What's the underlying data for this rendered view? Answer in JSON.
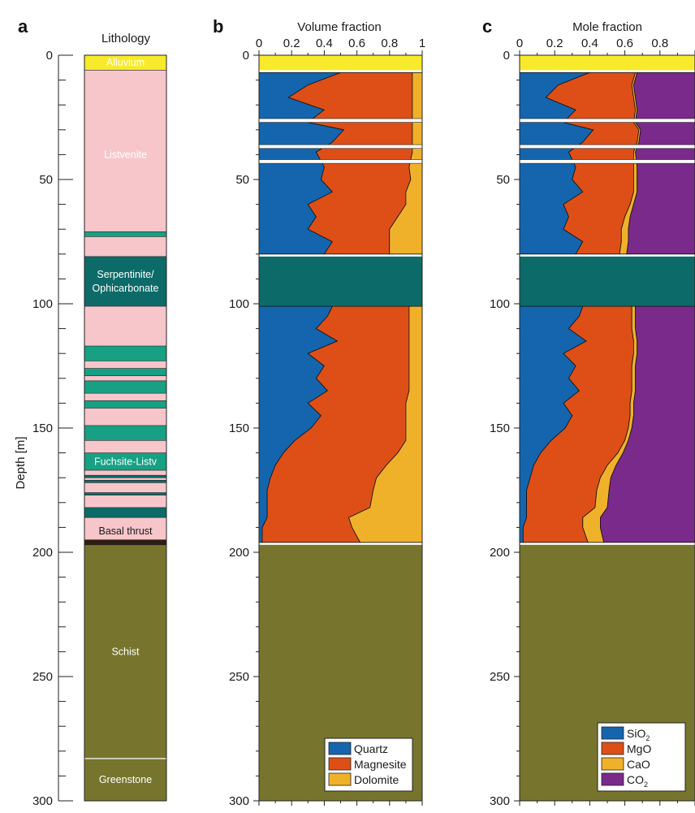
{
  "chart_data": [
    {
      "panel": "a",
      "type": "column",
      "title": "Lithology",
      "ylabel": "Depth [m]",
      "ylim": [
        0,
        300
      ],
      "y_ticks": [
        0,
        50,
        100,
        150,
        200,
        250,
        300
      ],
      "units": [
        {
          "label": "Alluvium",
          "top": 0,
          "bottom": 6,
          "color": "#f7ea2a"
        },
        {
          "label": "Listvenite",
          "top": 6,
          "bottom": 197,
          "color": "#f6c6cb"
        },
        {
          "label": "",
          "top": 71,
          "bottom": 73,
          "color": "#17a083"
        },
        {
          "label": "Serpentinite/\nOphicarbonate",
          "top": 81,
          "bottom": 101,
          "color": "#0c6b68"
        },
        {
          "label": "",
          "top": 117,
          "bottom": 123,
          "color": "#17a083"
        },
        {
          "label": "",
          "top": 126,
          "bottom": 129,
          "color": "#17a083"
        },
        {
          "label": "",
          "top": 131,
          "bottom": 136,
          "color": "#17a083"
        },
        {
          "label": "",
          "top": 139,
          "bottom": 142,
          "color": "#17a083"
        },
        {
          "label": "",
          "top": 149,
          "bottom": 155,
          "color": "#17a083"
        },
        {
          "label": "Fuchsite-Listv",
          "top": 160,
          "bottom": 167,
          "color": "#17a083"
        },
        {
          "label": "",
          "top": 169,
          "bottom": 170,
          "color": "#0c6b68"
        },
        {
          "label": "",
          "top": 171,
          "bottom": 172,
          "color": "#0c6b68"
        },
        {
          "label": "",
          "top": 176,
          "bottom": 177,
          "color": "#0c6b68"
        },
        {
          "label": "",
          "top": 182,
          "bottom": 186,
          "color": "#0c6b68"
        },
        {
          "label": "Basal thrust",
          "top": 195,
          "bottom": 197,
          "color": "#2e1e12"
        },
        {
          "label": "Schist",
          "top": 197,
          "bottom": 283,
          "color": "#77752d"
        },
        {
          "label": "Greenstone",
          "top": 283,
          "bottom": 300,
          "color": "#77752d"
        }
      ]
    },
    {
      "panel": "b",
      "type": "area",
      "title": "Volume fraction",
      "xlim": [
        0,
        1
      ],
      "x_ticks": [
        "0",
        "0.2",
        "0.4",
        "0.6",
        "0.8",
        "1"
      ],
      "ylim": [
        0,
        300
      ],
      "y_ticks": [
        0,
        50,
        100,
        150,
        200,
        250,
        300
      ],
      "legend_position": "bottom-right",
      "depth": [
        7,
        12,
        17,
        22,
        27,
        30,
        35,
        39,
        45,
        50,
        55,
        60,
        65,
        70,
        75,
        80,
        101,
        105,
        110,
        115,
        120,
        125,
        130,
        135,
        140,
        145,
        150,
        155,
        160,
        165,
        170,
        175,
        182,
        186,
        190,
        196
      ],
      "series": [
        {
          "name": "Quartz",
          "color": "#1465ad",
          "values": [
            0.5,
            0.3,
            0.18,
            0.4,
            0.3,
            0.52,
            0.45,
            0.35,
            0.4,
            0.38,
            0.45,
            0.3,
            0.35,
            0.3,
            0.45,
            0.4,
            0.45,
            0.42,
            0.35,
            0.48,
            0.3,
            0.4,
            0.35,
            0.42,
            0.3,
            0.38,
            0.32,
            0.22,
            0.15,
            0.1,
            0.07,
            0.05,
            0.05,
            0.05,
            0.02,
            0.02
          ]
        },
        {
          "name": "Magnesite",
          "color": "#dd4f17",
          "values": [
            0.44,
            0.64,
            0.76,
            0.54,
            0.64,
            0.42,
            0.49,
            0.59,
            0.52,
            0.55,
            0.45,
            0.6,
            0.5,
            0.5,
            0.35,
            0.4,
            0.47,
            0.5,
            0.57,
            0.44,
            0.62,
            0.52,
            0.57,
            0.5,
            0.6,
            0.52,
            0.58,
            0.68,
            0.7,
            0.68,
            0.65,
            0.65,
            0.63,
            0.5,
            0.55,
            0.6
          ]
        },
        {
          "name": "Dolomite",
          "color": "#f0b12a",
          "values": [
            0.06,
            0.06,
            0.06,
            0.06,
            0.06,
            0.06,
            0.06,
            0.06,
            0.08,
            0.07,
            0.1,
            0.1,
            0.15,
            0.2,
            0.2,
            0.2,
            0.08,
            0.08,
            0.08,
            0.08,
            0.08,
            0.08,
            0.08,
            0.08,
            0.1,
            0.1,
            0.1,
            0.1,
            0.15,
            0.22,
            0.28,
            0.3,
            0.32,
            0.45,
            0.43,
            0.38
          ]
        }
      ]
    },
    {
      "panel": "c",
      "type": "area",
      "title": "Mole fraction",
      "xlim": [
        0,
        1
      ],
      "x_ticks": [
        "0",
        "0.2",
        "0.4",
        "0.6",
        "0.8"
      ],
      "ylim": [
        0,
        300
      ],
      "y_ticks": [
        0,
        50,
        100,
        150,
        200,
        250,
        300
      ],
      "legend_position": "bottom-right",
      "depth": [
        7,
        12,
        17,
        22,
        27,
        30,
        35,
        39,
        45,
        50,
        55,
        60,
        65,
        70,
        75,
        80,
        101,
        105,
        110,
        115,
        120,
        125,
        130,
        135,
        140,
        145,
        150,
        155,
        160,
        165,
        170,
        175,
        182,
        186,
        190,
        196
      ],
      "series": [
        {
          "name": "SiO",
          "subscript": "2",
          "color": "#1465ad",
          "values": [
            0.4,
            0.22,
            0.15,
            0.32,
            0.25,
            0.42,
            0.36,
            0.28,
            0.32,
            0.3,
            0.36,
            0.25,
            0.28,
            0.25,
            0.36,
            0.32,
            0.36,
            0.34,
            0.28,
            0.38,
            0.25,
            0.32,
            0.28,
            0.34,
            0.25,
            0.3,
            0.26,
            0.18,
            0.12,
            0.08,
            0.06,
            0.04,
            0.04,
            0.04,
            0.02,
            0.02
          ]
        },
        {
          "name": "MgO",
          "color": "#dd4f17",
          "values": [
            0.26,
            0.42,
            0.5,
            0.34,
            0.4,
            0.26,
            0.31,
            0.37,
            0.33,
            0.35,
            0.29,
            0.38,
            0.32,
            0.33,
            0.22,
            0.25,
            0.28,
            0.3,
            0.36,
            0.27,
            0.4,
            0.32,
            0.36,
            0.3,
            0.38,
            0.33,
            0.36,
            0.42,
            0.44,
            0.42,
            0.4,
            0.4,
            0.39,
            0.32,
            0.34,
            0.37
          ]
        },
        {
          "name": "CaO",
          "color": "#f0b12a",
          "values": [
            0.01,
            0.01,
            0.01,
            0.01,
            0.01,
            0.01,
            0.01,
            0.01,
            0.02,
            0.02,
            0.02,
            0.02,
            0.03,
            0.04,
            0.04,
            0.04,
            0.02,
            0.02,
            0.02,
            0.02,
            0.02,
            0.02,
            0.02,
            0.02,
            0.02,
            0.02,
            0.02,
            0.02,
            0.03,
            0.05,
            0.06,
            0.07,
            0.07,
            0.1,
            0.1,
            0.09
          ]
        },
        {
          "name": "CO",
          "subscript": "2",
          "color": "#7a2a8a",
          "values": [
            0.33,
            0.35,
            0.34,
            0.33,
            0.34,
            0.31,
            0.32,
            0.34,
            0.33,
            0.33,
            0.33,
            0.35,
            0.37,
            0.38,
            0.38,
            0.39,
            0.34,
            0.34,
            0.34,
            0.33,
            0.33,
            0.34,
            0.34,
            0.34,
            0.35,
            0.35,
            0.36,
            0.38,
            0.41,
            0.45,
            0.48,
            0.49,
            0.5,
            0.54,
            0.54,
            0.52
          ]
        }
      ]
    }
  ],
  "colors": {
    "alluvium": "#f7ea2a",
    "ophicarbonate": "#0c6b68",
    "greenstone_schist": "#77752d",
    "fuchsite": "#17a083"
  }
}
